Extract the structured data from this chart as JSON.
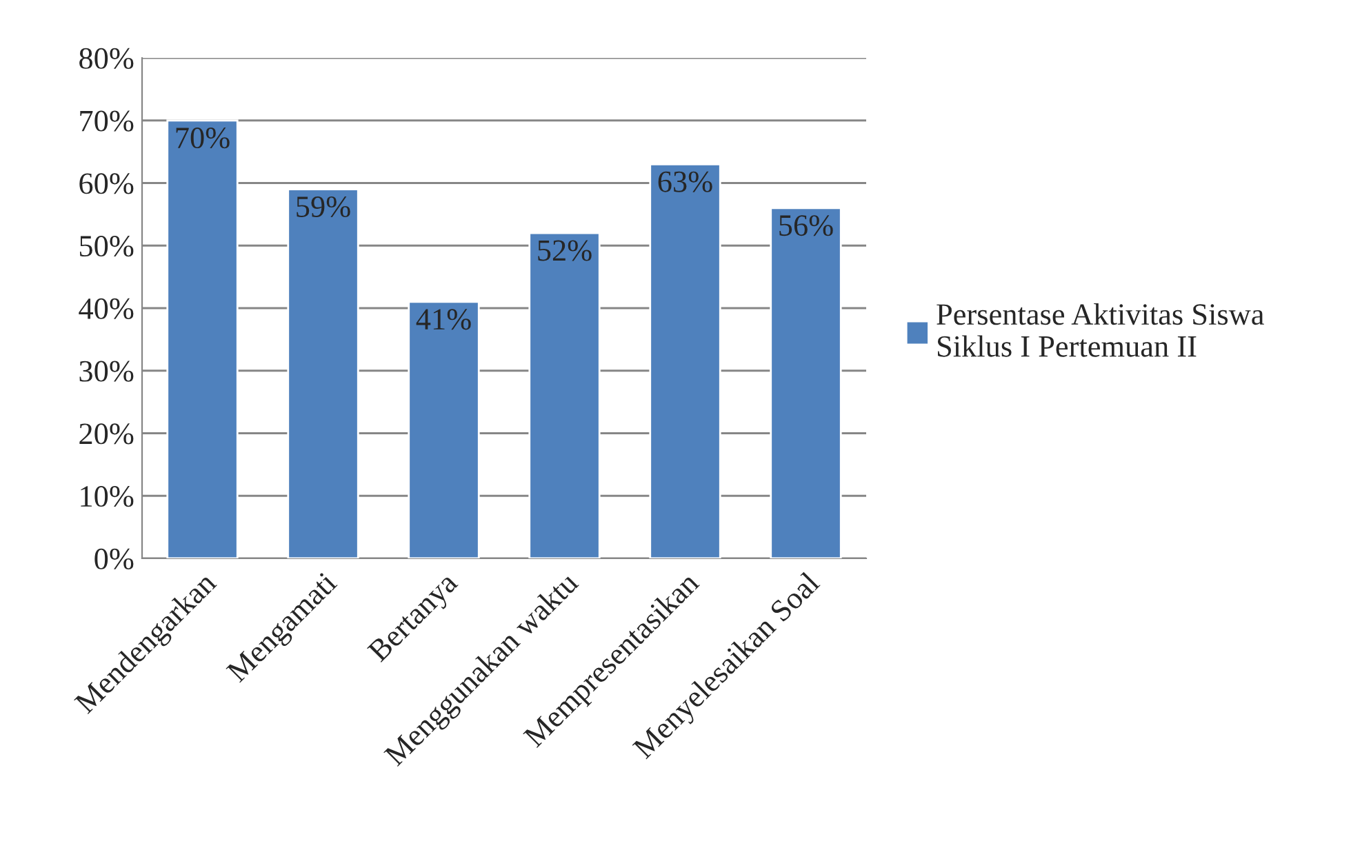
{
  "chart_data": {
    "type": "bar",
    "categories": [
      "Mendengarkan",
      "Mengamati",
      "Bertanya",
      "Menggunakan waktu",
      "Mempresentasikan",
      "Menyelesaikan Soal"
    ],
    "series": [
      {
        "name": "Persentase Aktivitas Siswa Siklus I Pertemuan II",
        "color": "#4f81bd",
        "values": [
          70,
          59,
          41,
          52,
          63,
          56
        ],
        "value_labels": [
          "70%",
          "59%",
          "41%",
          "52%",
          "63%",
          "56%"
        ]
      }
    ],
    "ylim": [
      0,
      80
    ],
    "yticks": [
      {
        "value": 0,
        "label": "0%"
      },
      {
        "value": 10,
        "label": "10%"
      },
      {
        "value": 20,
        "label": "20%"
      },
      {
        "value": 30,
        "label": "30%"
      },
      {
        "value": 40,
        "label": "40%"
      },
      {
        "value": 50,
        "label": "50%"
      },
      {
        "value": 60,
        "label": "60%"
      },
      {
        "value": 70,
        "label": "70%"
      },
      {
        "value": 80,
        "label": "80%"
      }
    ],
    "grid": "y",
    "legend": "right"
  }
}
